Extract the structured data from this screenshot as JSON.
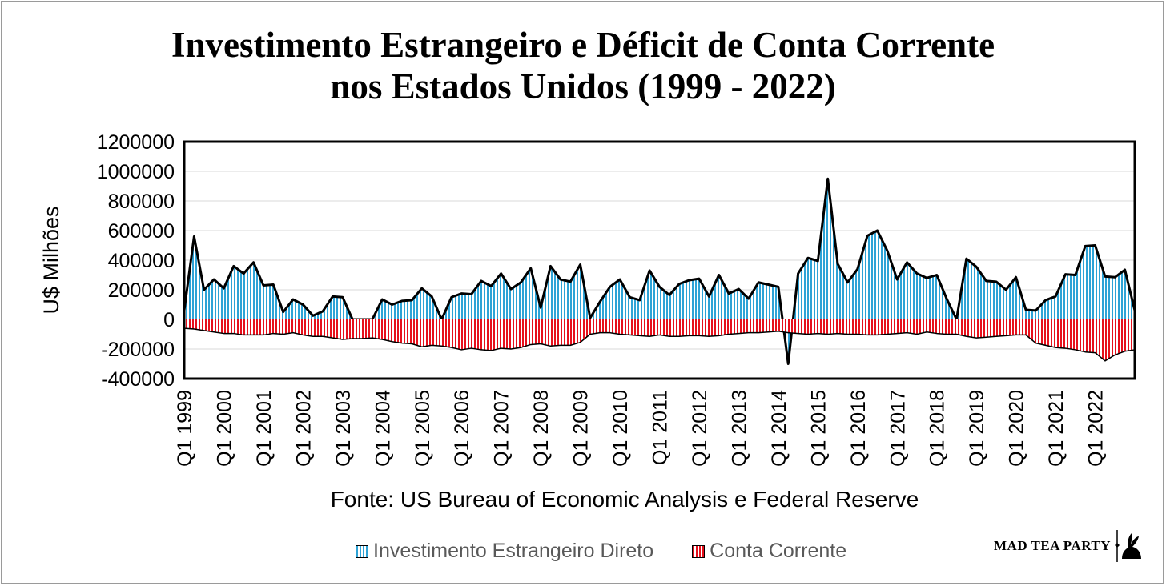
{
  "chart_data": {
    "type": "area",
    "title_line1": "Investimento Estrangeiro e Déficit de Conta Corrente",
    "title_line2": "nos Estados Unidos (1999 - 2022)",
    "ylabel": "U$ Milhões",
    "xlabel": "",
    "ylim": [
      -400000,
      1200000
    ],
    "y_ticks": [
      1200000,
      1000000,
      800000,
      600000,
      400000,
      200000,
      0,
      -200000,
      -400000
    ],
    "y_tick_labels": [
      "1200000",
      "1000000",
      "800000",
      "600000",
      "400000",
      "200000",
      "0",
      "-200000",
      "-400000"
    ],
    "x_tick_labels": [
      "Q1 1999",
      "Q1 2000",
      "Q1 2001",
      "Q1 2002",
      "Q1 2003",
      "Q1 2004",
      "Q1 2005",
      "Q1 2006",
      "Q1 2007",
      "Q1 2008",
      "Q1 2009",
      "Q1 2010",
      "Q1 2011",
      "Q1 2012",
      "Q1 2013",
      "Q1 2014",
      "Q1 2015",
      "Q1 2016",
      "Q1 2017",
      "Q1 2018",
      "Q1 2019",
      "Q1 2020",
      "Q1 2021",
      "Q1 2022"
    ],
    "grid": true,
    "legend_position": "bottom",
    "source": "Fonte: US Bureau of Economic Analysis e Federal Reserve",
    "series": [
      {
        "name": "Investimento Estrangeiro Direto",
        "color": "#2ea3d6",
        "values": [
          60000,
          560000,
          200000,
          270000,
          210000,
          360000,
          310000,
          385000,
          230000,
          235000,
          50000,
          135000,
          100000,
          25000,
          55000,
          155000,
          150000,
          0,
          0,
          0,
          135000,
          100000,
          125000,
          130000,
          210000,
          155000,
          0,
          150000,
          175000,
          170000,
          260000,
          225000,
          310000,
          205000,
          250000,
          345000,
          80000,
          360000,
          270000,
          255000,
          370000,
          10000,
          120000,
          220000,
          270000,
          150000,
          130000,
          330000,
          220000,
          165000,
          240000,
          265000,
          275000,
          155000,
          300000,
          175000,
          205000,
          140000,
          250000,
          235000,
          220000,
          -300000,
          310000,
          415000,
          395000,
          950000,
          375000,
          250000,
          340000,
          565000,
          600000,
          465000,
          270000,
          385000,
          310000,
          280000,
          300000,
          140000,
          0,
          410000,
          355000,
          260000,
          255000,
          200000,
          285000,
          65000,
          60000,
          130000,
          155000,
          305000,
          300000,
          495000,
          500000,
          290000,
          285000,
          335000,
          60000
        ]
      },
      {
        "name": "Conta Corrente",
        "color": "#e6101c",
        "values": [
          -60000,
          -65000,
          -75000,
          -85000,
          -95000,
          -95000,
          -105000,
          -105000,
          -105000,
          -95000,
          -100000,
          -90000,
          -105000,
          -115000,
          -115000,
          -125000,
          -135000,
          -130000,
          -130000,
          -125000,
          -135000,
          -150000,
          -160000,
          -165000,
          -185000,
          -175000,
          -180000,
          -190000,
          -205000,
          -195000,
          -205000,
          -210000,
          -195000,
          -200000,
          -190000,
          -170000,
          -165000,
          -180000,
          -175000,
          -175000,
          -155000,
          -100000,
          -90000,
          -90000,
          -100000,
          -105000,
          -110000,
          -115000,
          -105000,
          -115000,
          -115000,
          -110000,
          -110000,
          -115000,
          -110000,
          -100000,
          -95000,
          -90000,
          -90000,
          -85000,
          -80000,
          -90000,
          -95000,
          -100000,
          -95000,
          -100000,
          -95000,
          -100000,
          -100000,
          -105000,
          -105000,
          -100000,
          -95000,
          -90000,
          -100000,
          -85000,
          -95000,
          -100000,
          -100000,
          -115000,
          -125000,
          -120000,
          -115000,
          -110000,
          -105000,
          -105000,
          -160000,
          -175000,
          -190000,
          -195000,
          -205000,
          -220000,
          -225000,
          -280000,
          -240000,
          -215000,
          -205000
        ]
      }
    ]
  },
  "logo": {
    "text": "MAD TEA PARTY"
  }
}
